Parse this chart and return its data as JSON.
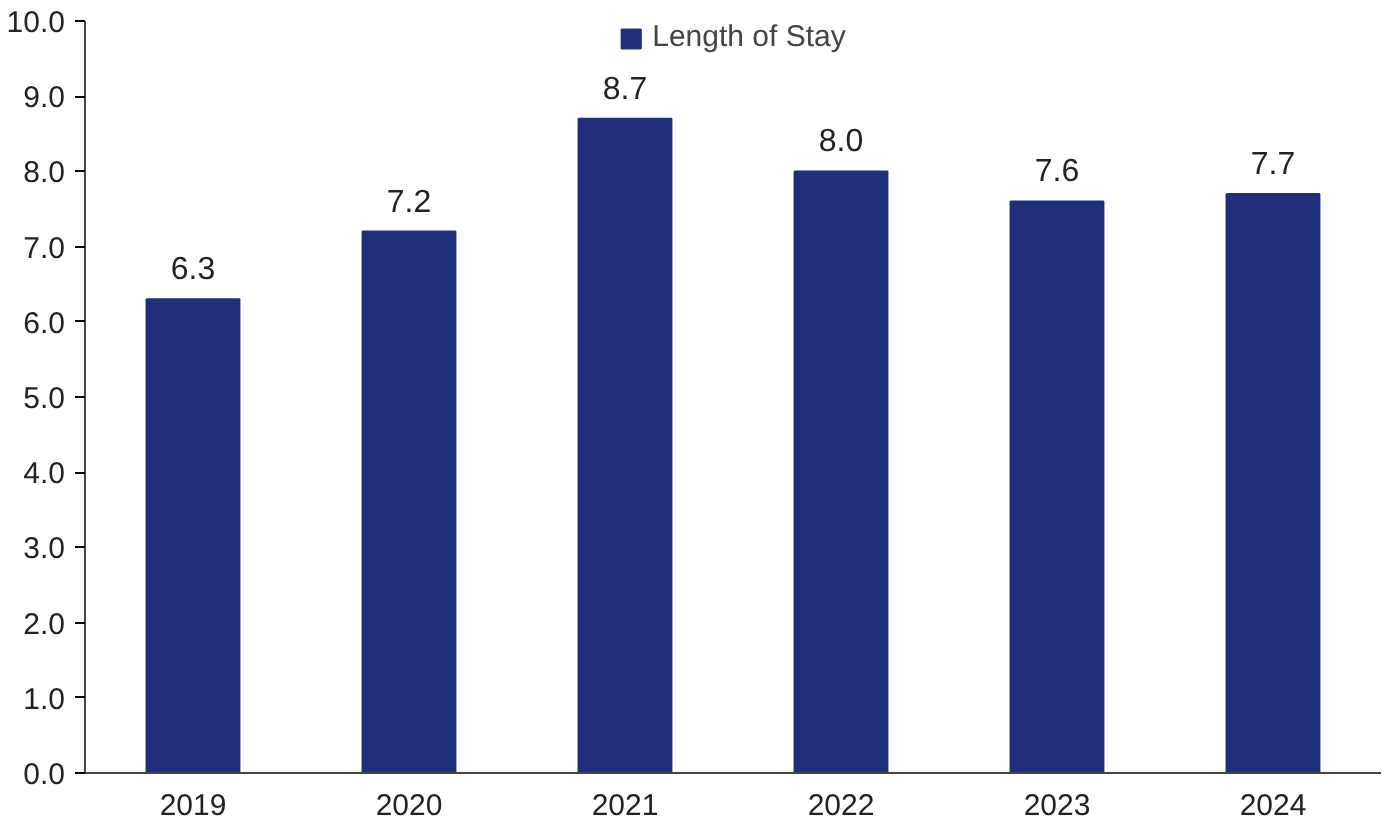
{
  "chart_data": {
    "type": "bar",
    "categories": [
      "2019",
      "2020",
      "2021",
      "2022",
      "2023",
      "2024"
    ],
    "series": [
      {
        "name": "Length of Stay",
        "color": "#1f2f7a",
        "values": [
          6.3,
          7.2,
          8.7,
          8.0,
          7.6,
          7.7
        ],
        "value_labels": [
          "6.3",
          "7.2",
          "8.7",
          "8.0",
          "7.6",
          "7.7"
        ]
      }
    ],
    "ylim": [
      0,
      10
    ],
    "yticks": [
      {
        "value": 0,
        "label": "0.0"
      },
      {
        "value": 1,
        "label": "1.0"
      },
      {
        "value": 2,
        "label": "2.0"
      },
      {
        "value": 3,
        "label": "3.0"
      },
      {
        "value": 4,
        "label": "4.0"
      },
      {
        "value": 5,
        "label": "5.0"
      },
      {
        "value": 6,
        "label": "6.0"
      },
      {
        "value": 7,
        "label": "7.0"
      },
      {
        "value": 8,
        "label": "8.0"
      },
      {
        "value": 9,
        "label": "9.0"
      },
      {
        "value": 10,
        "label": "10.0"
      }
    ],
    "legend": "top",
    "grid": false
  }
}
